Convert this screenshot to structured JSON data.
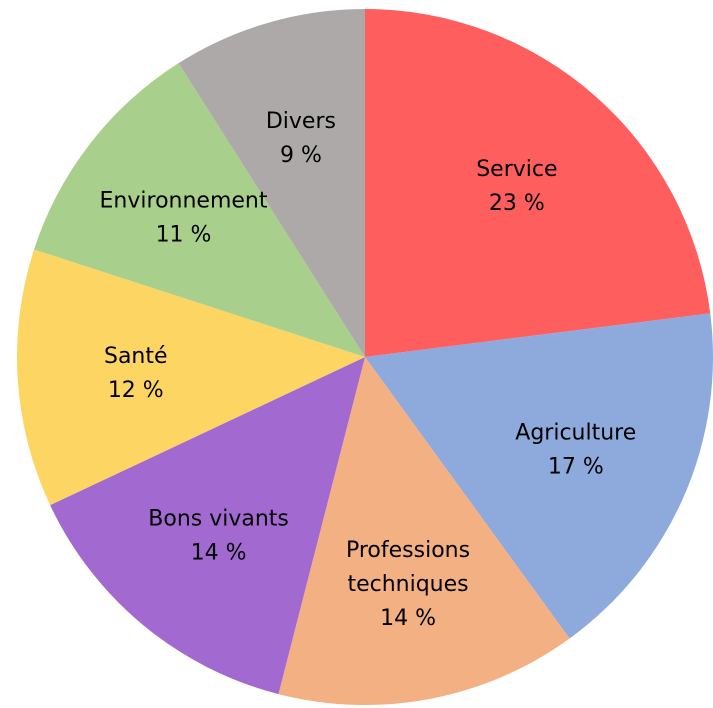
{
  "chart_data": {
    "type": "pie",
    "title": "",
    "unit": "%",
    "slices": [
      {
        "name": "Service",
        "label_lines": [
          "Service"
        ],
        "value_label": "23 %",
        "value": 23,
        "color": "#FF5E5E"
      },
      {
        "name": "Agriculture",
        "label_lines": [
          "Agriculture"
        ],
        "value_label": "17 %",
        "value": 17,
        "color": "#8EAADC"
      },
      {
        "name": "Professions techniques",
        "label_lines": [
          "Professions",
          "techniques"
        ],
        "value_label": "14 %",
        "value": 14,
        "color": "#F3B083"
      },
      {
        "name": "Bons vivants",
        "label_lines": [
          "Bons vivants"
        ],
        "value_label": "14 %",
        "value": 14,
        "color": "#A269D1"
      },
      {
        "name": "Santé",
        "label_lines": [
          "Santé"
        ],
        "value_label": "12 %",
        "value": 12,
        "color": "#FDD563"
      },
      {
        "name": "Environnement",
        "label_lines": [
          "Environnement"
        ],
        "value_label": "11 %",
        "value": 11,
        "color": "#A8D08C"
      },
      {
        "name": "Divers",
        "label_lines": [
          "Divers"
        ],
        "value_label": "9 %",
        "value": 9,
        "color": "#ADA9A9"
      }
    ],
    "legend": "none"
  }
}
